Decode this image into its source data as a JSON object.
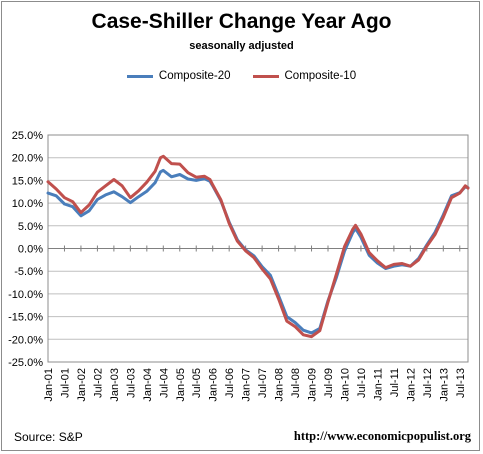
{
  "source": "Source: S&P",
  "url": "http://www.economicpopulist.org",
  "chart_data": {
    "type": "line",
    "title": "Case-Shiller Change Year Ago",
    "subtitle": "seasonally adjusted",
    "xlabel": "",
    "ylabel": "",
    "ylim": [
      -25,
      25
    ],
    "yticks": [
      25,
      20,
      15,
      10,
      5,
      0,
      -5,
      -10,
      -15,
      -20,
      -25
    ],
    "ytick_labels": [
      "25.0%",
      "20.0%",
      "15.0%",
      "10.0%",
      "5.0%",
      "0.0%",
      "-5.0%",
      "-10.0%",
      "-15.0%",
      "-20.0%",
      "-25.0%"
    ],
    "grid": true,
    "legend_position": "top",
    "x_start": "Jan-01",
    "x_end": "Oct-13",
    "x_tick_labels": [
      "Jan-01",
      "Jul-01",
      "Jan-02",
      "Jul-02",
      "Jan-03",
      "Jul-03",
      "Jan-04",
      "Jul-04",
      "Jan-05",
      "Jul-05",
      "Jan-06",
      "Jul-06",
      "Jan-07",
      "Jul-07",
      "Jan-08",
      "Jul-08",
      "Jan-09",
      "Jul-09",
      "Jan-10",
      "Jul-10",
      "Jan-11",
      "Jul-11",
      "Jan-12",
      "Jul-12",
      "Jan-13",
      "Jul-13"
    ],
    "series": [
      {
        "name": "Composite-20",
        "color": "#4a7ebb",
        "points": [
          [
            "Jan-01",
            12.2
          ],
          [
            "Apr-01",
            11.6
          ],
          [
            "Jul-01",
            9.8
          ],
          [
            "Oct-01",
            9.2
          ],
          [
            "Jan-02",
            7.2
          ],
          [
            "Apr-02",
            8.3
          ],
          [
            "Jul-02",
            10.8
          ],
          [
            "Oct-02",
            11.8
          ],
          [
            "Jan-03",
            12.5
          ],
          [
            "Apr-03",
            11.4
          ],
          [
            "Jul-03",
            10.1
          ],
          [
            "Oct-03",
            11.4
          ],
          [
            "Jan-04",
            12.6
          ],
          [
            "Apr-04",
            14.5
          ],
          [
            "Jun-04",
            16.9
          ],
          [
            "Jul-04",
            17.2
          ],
          [
            "Oct-04",
            15.8
          ],
          [
            "Jan-05",
            16.3
          ],
          [
            "Apr-05",
            15.3
          ],
          [
            "Jul-05",
            15.0
          ],
          [
            "Oct-05",
            15.4
          ],
          [
            "Dec-05",
            14.8
          ],
          [
            "Jan-06",
            13.8
          ],
          [
            "Apr-06",
            10.5
          ],
          [
            "Jul-06",
            5.8
          ],
          [
            "Oct-06",
            1.9
          ],
          [
            "Jan-07",
            -0.3
          ],
          [
            "Apr-07",
            -1.6
          ],
          [
            "Jul-07",
            -4.0
          ],
          [
            "Oct-07",
            -5.9
          ],
          [
            "Jan-08",
            -10.4
          ],
          [
            "Apr-08",
            -15.0
          ],
          [
            "Jul-08",
            -16.3
          ],
          [
            "Oct-08",
            -18.0
          ],
          [
            "Jan-09",
            -18.6
          ],
          [
            "Apr-09",
            -17.6
          ],
          [
            "Jul-09",
            -11.5
          ],
          [
            "Oct-09",
            -6.5
          ],
          [
            "Jan-10",
            -0.6
          ],
          [
            "Apr-10",
            3.5
          ],
          [
            "May-10",
            4.4
          ],
          [
            "Jul-10",
            2.5
          ],
          [
            "Oct-10",
            -1.5
          ],
          [
            "Jan-11",
            -3.2
          ],
          [
            "Apr-11",
            -4.4
          ],
          [
            "Jul-11",
            -3.9
          ],
          [
            "Oct-11",
            -3.6
          ],
          [
            "Jan-12",
            -3.9
          ],
          [
            "Apr-12",
            -2.2
          ],
          [
            "Jul-12",
            0.8
          ],
          [
            "Oct-12",
            3.6
          ],
          [
            "Jan-13",
            7.4
          ],
          [
            "Apr-13",
            11.6
          ],
          [
            "Jul-13",
            12.3
          ],
          [
            "Sep-13",
            13.6
          ],
          [
            "Oct-13",
            13.4
          ]
        ]
      },
      {
        "name": "Composite-10",
        "color": "#c0504d",
        "points": [
          [
            "Jan-01",
            14.7
          ],
          [
            "Apr-01",
            13.1
          ],
          [
            "Jul-01",
            11.2
          ],
          [
            "Oct-01",
            10.3
          ],
          [
            "Jan-02",
            7.9
          ],
          [
            "Apr-02",
            9.6
          ],
          [
            "Jul-02",
            12.4
          ],
          [
            "Oct-02",
            13.8
          ],
          [
            "Jan-03",
            15.2
          ],
          [
            "Apr-03",
            13.8
          ],
          [
            "Jul-03",
            11.2
          ],
          [
            "Oct-03",
            12.7
          ],
          [
            "Jan-04",
            14.6
          ],
          [
            "Apr-04",
            17.0
          ],
          [
            "Jun-04",
            20.0
          ],
          [
            "Jul-04",
            20.3
          ],
          [
            "Oct-04",
            18.7
          ],
          [
            "Jan-05",
            18.6
          ],
          [
            "Apr-05",
            16.7
          ],
          [
            "Jul-05",
            15.7
          ],
          [
            "Oct-05",
            15.9
          ],
          [
            "Dec-05",
            15.2
          ],
          [
            "Jan-06",
            14.0
          ],
          [
            "Apr-06",
            10.7
          ],
          [
            "Jul-06",
            5.5
          ],
          [
            "Oct-06",
            1.6
          ],
          [
            "Jan-07",
            -0.5
          ],
          [
            "Apr-07",
            -2.0
          ],
          [
            "Jul-07",
            -4.5
          ],
          [
            "Oct-07",
            -6.7
          ],
          [
            "Jan-08",
            -11.1
          ],
          [
            "Apr-08",
            -16.0
          ],
          [
            "Jul-08",
            -17.2
          ],
          [
            "Oct-08",
            -19.0
          ],
          [
            "Jan-09",
            -19.4
          ],
          [
            "Apr-09",
            -18.1
          ],
          [
            "Jul-09",
            -11.8
          ],
          [
            "Oct-09",
            -5.8
          ],
          [
            "Jan-10",
            0.4
          ],
          [
            "Apr-10",
            4.2
          ],
          [
            "May-10",
            5.1
          ],
          [
            "Jul-10",
            3.2
          ],
          [
            "Oct-10",
            -0.9
          ],
          [
            "Jan-11",
            -2.7
          ],
          [
            "Apr-11",
            -4.2
          ],
          [
            "Jul-11",
            -3.5
          ],
          [
            "Oct-11",
            -3.3
          ],
          [
            "Jan-12",
            -3.9
          ],
          [
            "Apr-12",
            -2.5
          ],
          [
            "Jul-12",
            0.5
          ],
          [
            "Oct-12",
            3.1
          ],
          [
            "Jan-13",
            6.9
          ],
          [
            "Apr-13",
            11.2
          ],
          [
            "Jul-13",
            12.2
          ],
          [
            "Sep-13",
            13.8
          ],
          [
            "Oct-13",
            13.3
          ]
        ]
      }
    ]
  }
}
